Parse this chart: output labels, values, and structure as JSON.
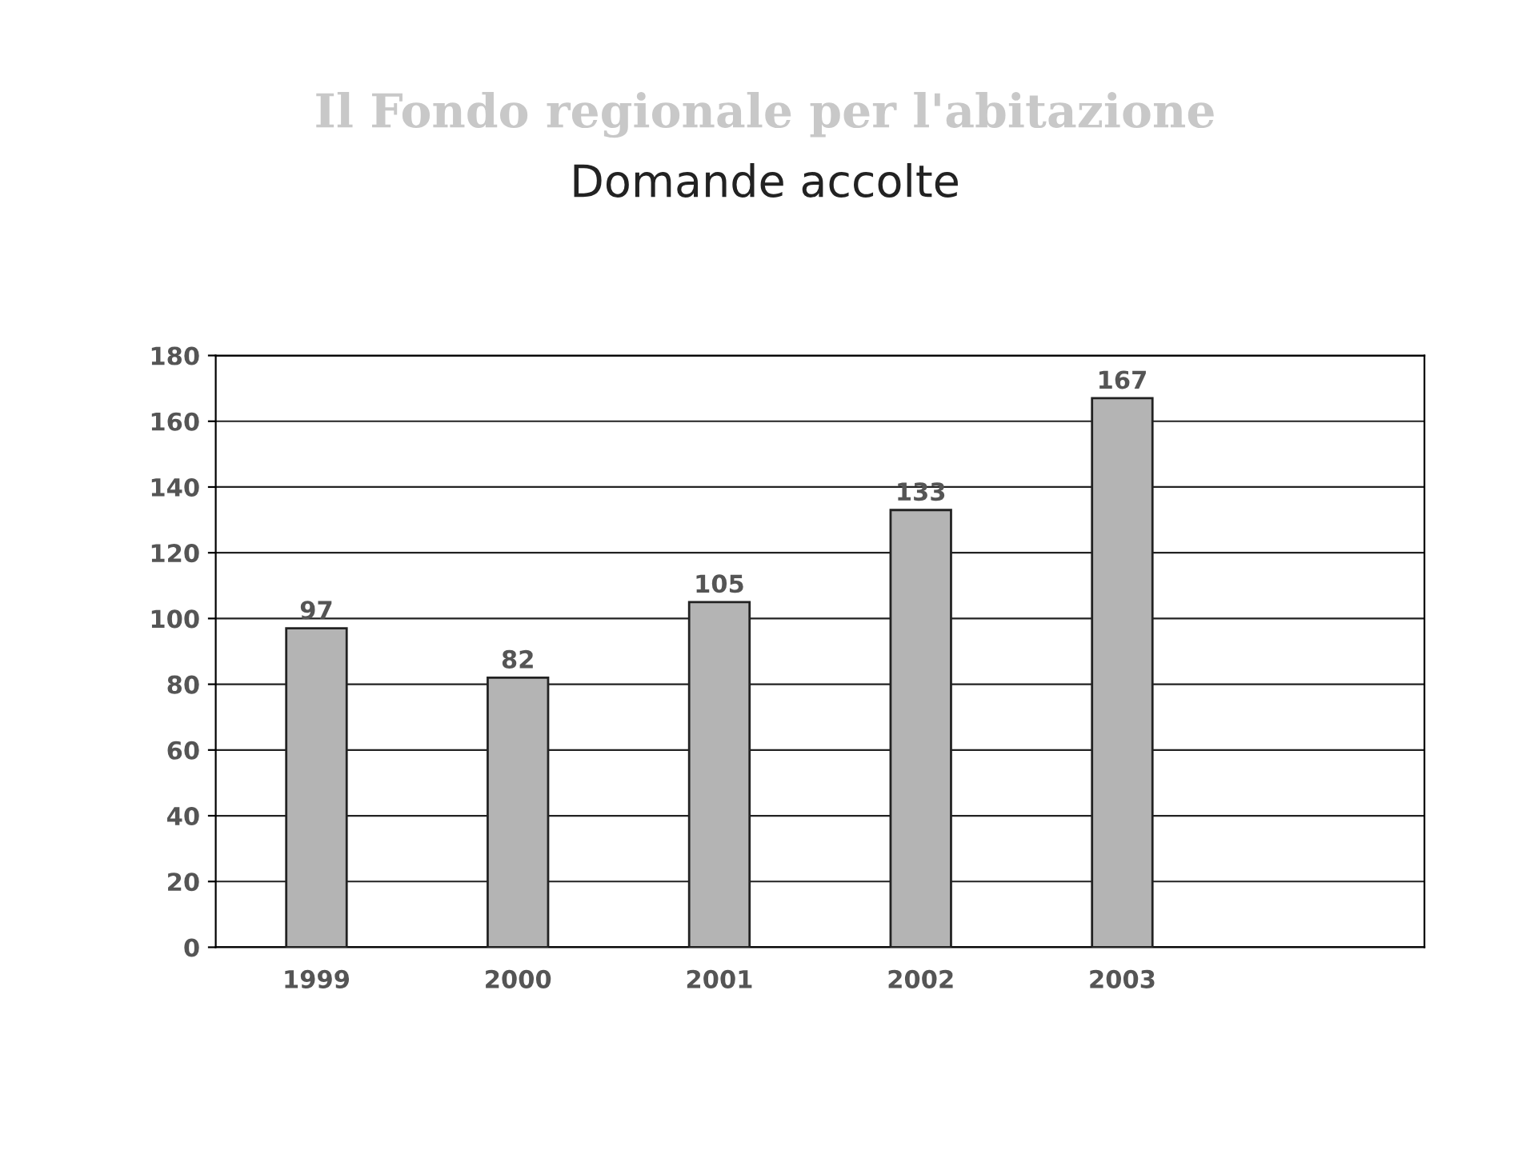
{
  "chart_data": {
    "type": "bar",
    "title": "Il Fondo regionale per l'abitazione",
    "subtitle": "Domande accolte",
    "categories": [
      "1999",
      "2000",
      "2001",
      "2002",
      "2003",
      null
    ],
    "values": [
      97,
      82,
      105,
      133,
      167,
      null
    ],
    "color": "#b4b4b4",
    "ylim": [
      0,
      180
    ],
    "yticks": [
      0,
      20,
      40,
      60,
      80,
      100,
      120,
      140,
      160,
      180
    ],
    "grid": "y",
    "data_labels": true
  }
}
